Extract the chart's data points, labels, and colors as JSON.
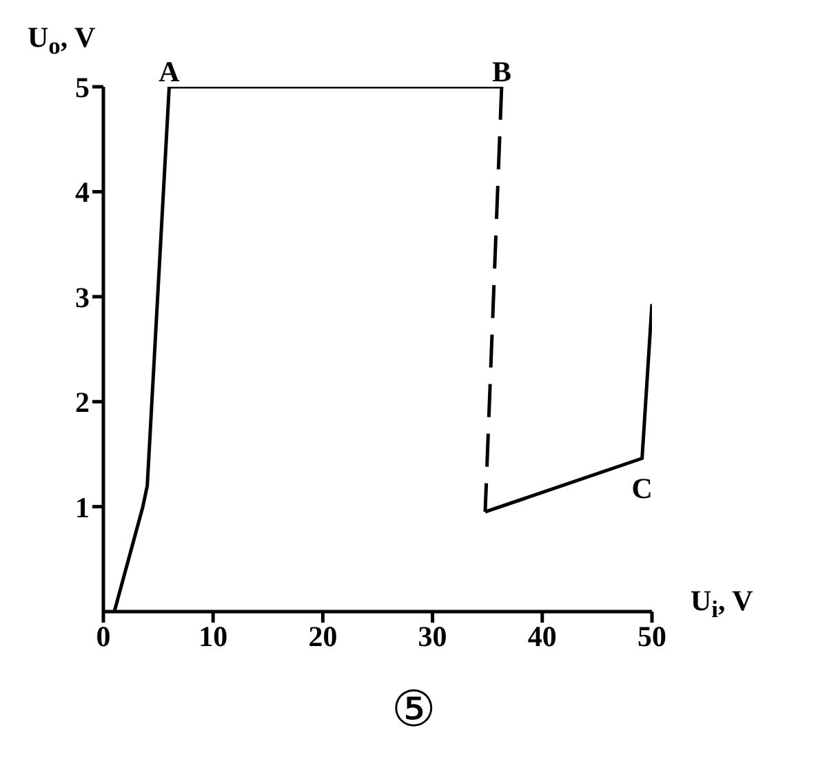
{
  "chart_data": {
    "type": "line",
    "xlabel": "U$_{i}$, V",
    "ylabel": "U$_{o}$, V",
    "xlim": [
      0,
      50
    ],
    "xticks": [
      0,
      10,
      20,
      30,
      40,
      50
    ],
    "ylim": [
      0,
      5
    ],
    "yticks": [
      1,
      2,
      3,
      4,
      5
    ],
    "marker": "none",
    "series": [
      {
        "color": "#000000",
        "line_style": "solid",
        "x": [
          1,
          3.6,
          4,
          6,
          36.3
        ],
        "values": [
          0,
          1,
          1.2,
          5,
          5
        ]
      },
      {
        "color": "#000000",
        "line_style": "dashed",
        "x": [
          36.3,
          34.8
        ],
        "values": [
          5,
          0.95
        ]
      },
      {
        "color": "#000000",
        "line_style": "solid",
        "x": [
          34.8,
          49.1,
          50
        ],
        "values": [
          0.95,
          1.46,
          2.93
        ]
      }
    ],
    "annotations": [
      {
        "text": "A",
        "x": 6,
        "y": 5
      },
      {
        "text": "B",
        "x": 36.3,
        "y": 5
      },
      {
        "text": "C",
        "x": 49.1,
        "y": 1.46
      },
      "⑤"
    ]
  }
}
